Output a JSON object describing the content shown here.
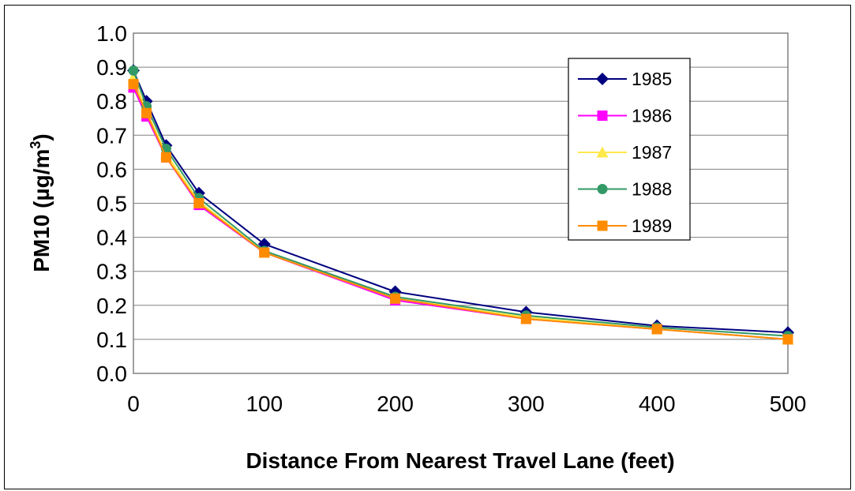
{
  "chart_data": {
    "type": "line",
    "xlabel": "Distance From Nearest Travel Lane (feet)",
    "ylabel_main": "PM10 (µg/m",
    "ylabel_sup": "3",
    "ylabel_close": ")",
    "xlim": [
      0,
      500
    ],
    "ylim": [
      0.0,
      1.0
    ],
    "xticks": [
      0,
      100,
      200,
      300,
      400,
      500
    ],
    "yticks": [
      "0.0",
      "0.1",
      "0.2",
      "0.3",
      "0.4",
      "0.5",
      "0.6",
      "0.7",
      "0.8",
      "0.9",
      "1.0"
    ],
    "grid": true,
    "legend_position": "top-right",
    "x": [
      0,
      10,
      25,
      50,
      100,
      200,
      300,
      400,
      500
    ],
    "series": [
      {
        "name": "1985",
        "color": "#000080",
        "marker": "diamond",
        "values": [
          0.89,
          0.8,
          0.67,
          0.53,
          0.38,
          0.24,
          0.18,
          0.14,
          0.12
        ]
      },
      {
        "name": "1986",
        "color": "#FF00FF",
        "marker": "square",
        "values": [
          0.84,
          0.755,
          0.635,
          0.495,
          0.355,
          0.215,
          0.16,
          0.13,
          0.1
        ]
      },
      {
        "name": "1987",
        "color": "#FFE84A",
        "marker": "triangle",
        "values": [
          0.87,
          0.77,
          0.645,
          0.505,
          0.355,
          0.22,
          0.165,
          0.13,
          0.1
        ]
      },
      {
        "name": "1988",
        "color": "#339966",
        "marker": "circle",
        "values": [
          0.89,
          0.785,
          0.66,
          0.515,
          0.36,
          0.225,
          0.17,
          0.135,
          0.11
        ]
      },
      {
        "name": "1989",
        "color": "#FF8C00",
        "marker": "square",
        "values": [
          0.85,
          0.765,
          0.635,
          0.5,
          0.355,
          0.22,
          0.16,
          0.13,
          0.1
        ]
      }
    ]
  }
}
